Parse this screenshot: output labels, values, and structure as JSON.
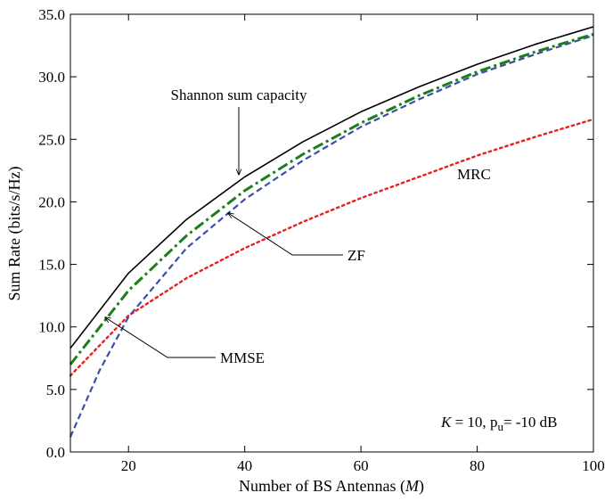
{
  "chart_data": {
    "type": "line",
    "xlabel": "Number of BS Antennas (",
    "xlabel_var": "M",
    "xlabel_end": ")",
    "ylabel": "Sum Rate (bits/s/Hz)",
    "xlim": [
      10,
      100
    ],
    "ylim": [
      0,
      35
    ],
    "xticks": [
      20,
      40,
      60,
      80,
      100
    ],
    "yticks": [
      "0.0",
      "5.0",
      "10.0",
      "15.0",
      "20.0",
      "25.0",
      "30.0",
      "35.0"
    ],
    "grid": false,
    "series": [
      {
        "name": "Shannon sum capacity",
        "color": "#000000",
        "style": "solid",
        "x": [
          10,
          20,
          30,
          40,
          50,
          60,
          70,
          80,
          90,
          100
        ],
        "y": [
          8.3,
          14.3,
          18.6,
          22.0,
          24.8,
          27.2,
          29.2,
          31.0,
          32.6,
          34.0
        ]
      },
      {
        "name": "ZF",
        "color": "#3a4fa8",
        "style": "dashed",
        "x": [
          10,
          15,
          20,
          30,
          40,
          50,
          60,
          70,
          80,
          90,
          100
        ],
        "y": [
          1.2,
          6.5,
          10.8,
          16.3,
          20.2,
          23.3,
          26.0,
          28.2,
          30.2,
          31.8,
          33.3
        ]
      },
      {
        "name": "MMSE",
        "color": "#1a7f1a",
        "style": "dashdot",
        "x": [
          10,
          20,
          30,
          40,
          50,
          60,
          70,
          80,
          90,
          100
        ],
        "y": [
          7.0,
          12.9,
          17.3,
          20.9,
          23.8,
          26.3,
          28.5,
          30.4,
          32.0,
          33.4
        ]
      },
      {
        "name": "MRC",
        "color": "#e82020",
        "style": "dotted",
        "x": [
          10,
          20,
          30,
          40,
          50,
          60,
          70,
          80,
          90,
          100
        ],
        "y": [
          6.1,
          10.9,
          13.9,
          16.3,
          18.4,
          20.3,
          22.0,
          23.7,
          25.2,
          26.6
        ]
      }
    ],
    "annotations": {
      "shannon": "Shannon sum capacity",
      "zf": "ZF",
      "mmse": "MMSE",
      "mrc": "MRC",
      "params_k_var": "K",
      "params_k_value": " = 10, ",
      "params_p_base": "p",
      "params_p_sub": "u",
      "params_p_value": "= -10 dB"
    }
  }
}
